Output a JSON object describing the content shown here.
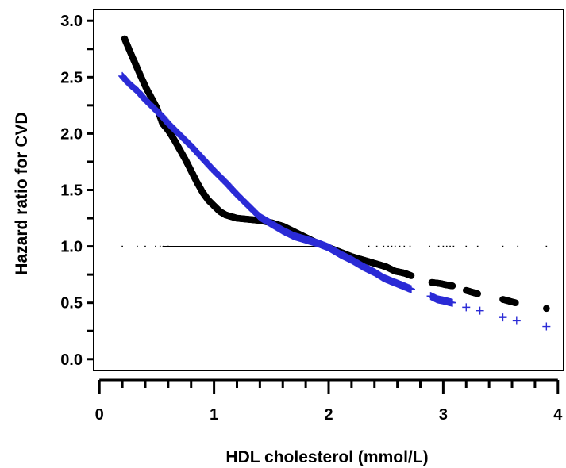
{
  "chart_data": {
    "type": "scatter",
    "title": "",
    "xlabel": "HDL  cholesterol  (mmol/L)",
    "ylabel": "Hazard  ratio  for  CVD",
    "xlim": [
      -0.05,
      4.05
    ],
    "ylim": [
      -0.1,
      3.1
    ],
    "x_ticks": [
      0,
      1,
      2,
      3,
      4
    ],
    "x_tick_labels": [
      "0",
      "1",
      "2",
      "3",
      "4"
    ],
    "y_ticks": [
      0.0,
      0.5,
      1.0,
      1.5,
      2.0,
      2.5,
      3.0
    ],
    "y_tick_labels": [
      "0.0",
      "0.5",
      "1.0",
      "1.5",
      "2.0",
      "2.5",
      "3.0"
    ],
    "grid": false,
    "legend": "none",
    "colors": {
      "series_black": "#000000",
      "series_blue": "#2b2bd6",
      "reference": "#000000"
    },
    "series": [
      {
        "marker": "dot",
        "color": "#000000",
        "points": [
          [
            0.22,
            2.84
          ],
          [
            0.27,
            2.72
          ],
          [
            0.36,
            2.51
          ],
          [
            0.41,
            2.4
          ],
          [
            0.5,
            2.23
          ],
          [
            0.55,
            2.09
          ],
          [
            0.6,
            2.03
          ],
          [
            0.65,
            1.95
          ],
          [
            0.7,
            1.86
          ],
          [
            0.75,
            1.77
          ],
          [
            0.8,
            1.67
          ],
          [
            0.85,
            1.57
          ],
          [
            0.9,
            1.48
          ],
          [
            0.95,
            1.41
          ],
          [
            1.0,
            1.36
          ],
          [
            1.05,
            1.31
          ],
          [
            1.1,
            1.28
          ],
          [
            1.2,
            1.25
          ],
          [
            1.3,
            1.24
          ],
          [
            1.4,
            1.23
          ],
          [
            1.5,
            1.21
          ],
          [
            1.6,
            1.18
          ],
          [
            1.7,
            1.13
          ],
          [
            1.8,
            1.08
          ],
          [
            1.9,
            1.03
          ],
          [
            2.0,
            0.99
          ],
          [
            2.1,
            0.95
          ],
          [
            2.2,
            0.91
          ],
          [
            2.3,
            0.88
          ],
          [
            2.4,
            0.85
          ],
          [
            2.5,
            0.82
          ],
          [
            2.58,
            0.78
          ],
          [
            2.63,
            0.77
          ],
          [
            2.67,
            0.76
          ],
          [
            2.72,
            0.74
          ],
          [
            2.9,
            0.68
          ],
          [
            2.98,
            0.67
          ],
          [
            3.02,
            0.66
          ],
          [
            3.08,
            0.65
          ],
          [
            3.2,
            0.61
          ],
          [
            3.3,
            0.58
          ],
          [
            3.52,
            0.53
          ],
          [
            3.63,
            0.5
          ],
          [
            3.9,
            0.45
          ]
        ]
      },
      {
        "marker": "plus",
        "color": "#2b2bd6",
        "points": [
          [
            0.2,
            2.51
          ],
          [
            0.25,
            2.45
          ],
          [
            0.34,
            2.37
          ],
          [
            0.39,
            2.31
          ],
          [
            0.49,
            2.21
          ],
          [
            0.55,
            2.15
          ],
          [
            0.6,
            2.09
          ],
          [
            0.7,
            1.99
          ],
          [
            0.8,
            1.89
          ],
          [
            0.9,
            1.78
          ],
          [
            1.0,
            1.67
          ],
          [
            1.1,
            1.57
          ],
          [
            1.2,
            1.46
          ],
          [
            1.3,
            1.36
          ],
          [
            1.4,
            1.26
          ],
          [
            1.5,
            1.2
          ],
          [
            1.6,
            1.14
          ],
          [
            1.7,
            1.09
          ],
          [
            1.8,
            1.06
          ],
          [
            1.9,
            1.03
          ],
          [
            2.0,
            0.99
          ],
          [
            2.1,
            0.93
          ],
          [
            2.2,
            0.88
          ],
          [
            2.3,
            0.82
          ],
          [
            2.4,
            0.77
          ],
          [
            2.48,
            0.72
          ],
          [
            2.55,
            0.69
          ],
          [
            2.6,
            0.67
          ],
          [
            2.65,
            0.65
          ],
          [
            2.72,
            0.62
          ],
          [
            2.89,
            0.56
          ],
          [
            2.95,
            0.53
          ],
          [
            3.0,
            0.52
          ],
          [
            3.08,
            0.5
          ],
          [
            3.2,
            0.46
          ],
          [
            3.32,
            0.43
          ],
          [
            3.52,
            0.37
          ],
          [
            3.64,
            0.34
          ],
          [
            3.9,
            0.29
          ]
        ]
      }
    ],
    "reference_line": {
      "y": 1.0,
      "x_start": 0.55,
      "x_end": 2.0
    },
    "rug_points": [
      0.2,
      0.33,
      0.4,
      0.49,
      0.53,
      0.56,
      0.6,
      2.35,
      2.42,
      2.48,
      2.52,
      2.55,
      2.58,
      2.62,
      2.66,
      2.71,
      2.88,
      2.96,
      3.0,
      3.03,
      3.06,
      3.09,
      3.2,
      3.3,
      3.52,
      3.65,
      3.9
    ]
  }
}
